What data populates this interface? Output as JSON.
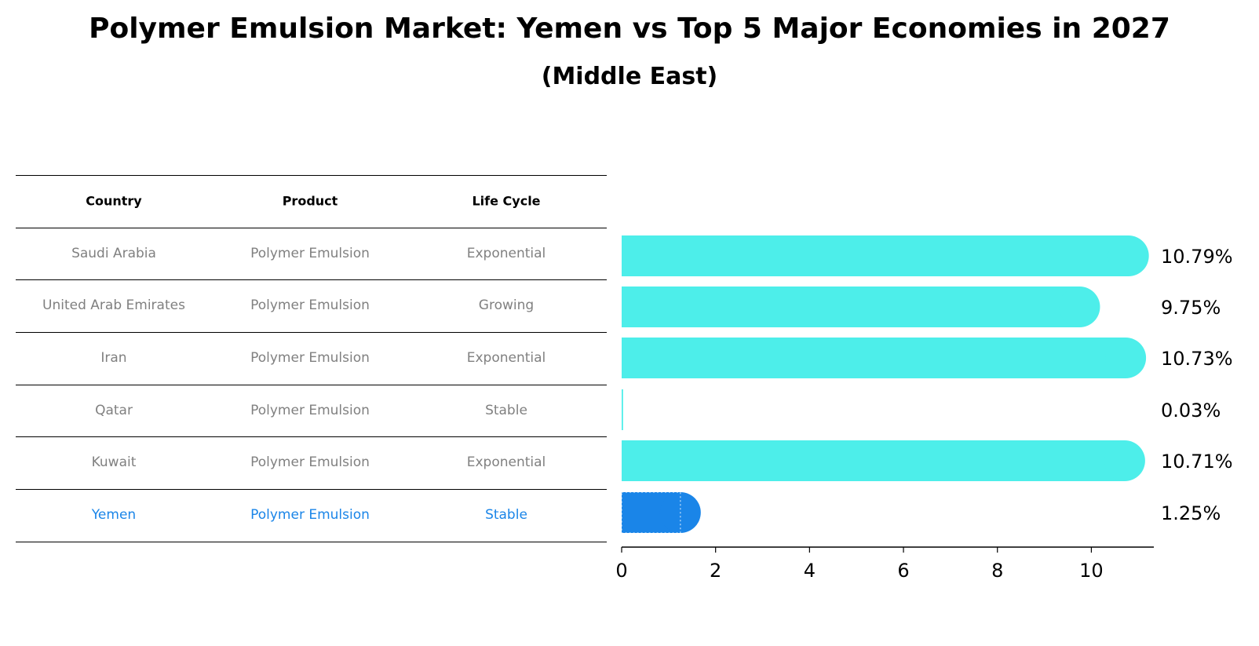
{
  "title": "Polymer Emulsion Market: Yemen vs Top 5 Major Economies in 2027",
  "subtitle": "(Middle East)",
  "table": {
    "headers": [
      "Country",
      "Product",
      "Life Cycle"
    ],
    "rows": [
      {
        "country": "Saudi Arabia",
        "product": "Polymer Emulsion",
        "life_cycle": "Exponential"
      },
      {
        "country": "United Arab Emirates",
        "product": "Polymer Emulsion",
        "life_cycle": "Growing"
      },
      {
        "country": "Iran",
        "product": "Polymer Emulsion",
        "life_cycle": "Exponential"
      },
      {
        "country": "Qatar",
        "product": "Polymer Emulsion",
        "life_cycle": "Stable"
      },
      {
        "country": "Kuwait",
        "product": "Polymer Emulsion",
        "life_cycle": "Exponential"
      },
      {
        "country": "Yemen",
        "product": "Polymer Emulsion",
        "life_cycle": "Stable"
      }
    ]
  },
  "colors": {
    "bar": "#4deeea",
    "highlight": "#1a85e8",
    "muted_text": "#808080"
  },
  "chart_data": {
    "type": "bar",
    "orientation": "horizontal",
    "categories": [
      "Saudi Arabia",
      "United Arab Emirates",
      "Iran",
      "Qatar",
      "Kuwait",
      "Yemen"
    ],
    "values": [
      10.79,
      9.75,
      10.73,
      0.03,
      10.71,
      1.25
    ],
    "value_labels": [
      "10.79%",
      "9.75%",
      "10.73%",
      "0.03%",
      "10.71%",
      "1.25%"
    ],
    "highlight": "Yemen",
    "xlim": [
      0,
      11.33
    ],
    "xticks": [
      0,
      2,
      4,
      6,
      8,
      10
    ],
    "xlabel": "",
    "ylabel": ""
  }
}
